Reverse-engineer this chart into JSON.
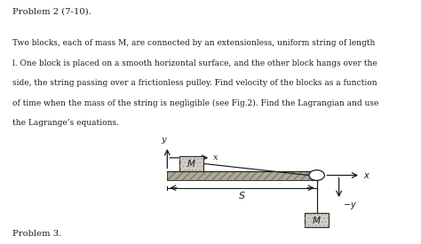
{
  "title_text": "Problem 2 (7-10).",
  "body_line1": "Two blocks, each of mass M, are connected by an extensionless, uniform string of length",
  "body_line2": "l. One block is placed on a smooth horizontal surface, and the other block hangs over the",
  "body_line3": "side, the string passing over a frictionless pulley. Find velocity of the blocks as a function",
  "body_line4": "of time when the mass of the string is negligible (see Fig.2). Find the Lagrangian and use",
  "body_line5": "the Lagrange’s equations.",
  "footer_text": "Problem 3.",
  "bg_color": "#ffffff",
  "block_fill": "#d4cfc8",
  "block_hatch_color": "#999990",
  "table_fill": "#b0a898",
  "dark": "#1a1a1a",
  "pulley_fill": "#ffffff"
}
